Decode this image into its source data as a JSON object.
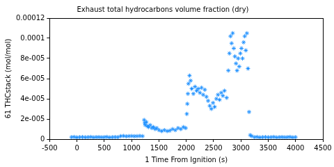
{
  "chart_data": {
    "type": "scatter",
    "title": "Exhaust total hydrocarbons volume fraction (dry)",
    "x_label": "1 Time From Ignition (s)",
    "y_label": "61 THCstack (mol/mol)",
    "color": "#1e90ff",
    "marker": "star",
    "grid": false,
    "x": [
      -100,
      -50,
      0,
      50,
      100,
      150,
      200,
      250,
      300,
      350,
      400,
      450,
      500,
      550,
      600,
      650,
      700,
      750,
      800,
      850,
      900,
      950,
      1000,
      1050,
      1100,
      1150,
      1200,
      1230,
      1240,
      1250,
      1270,
      1290,
      1310,
      1340,
      1370,
      1400,
      1430,
      1460,
      1500,
      1550,
      1600,
      1650,
      1700,
      1750,
      1800,
      1850,
      1900,
      1950,
      1990,
      2010,
      2020,
      2030,
      2040,
      2060,
      2080,
      2100,
      2130,
      2160,
      2190,
      2220,
      2250,
      2280,
      2310,
      2340,
      2370,
      2400,
      2430,
      2460,
      2490,
      2520,
      2550,
      2580,
      2610,
      2640,
      2670,
      2700,
      2740,
      2770,
      2790,
      2810,
      2830,
      2850,
      2870,
      2890,
      2910,
      2930,
      2950,
      2970,
      2990,
      3010,
      3030,
      3050,
      3070,
      3090,
      3110,
      3130,
      3150,
      3170,
      3200,
      3250,
      3300,
      3350,
      3400,
      3450,
      3500,
      3550,
      3600,
      3650,
      3700,
      3750,
      3800,
      3850,
      3900,
      3950,
      4000
    ],
    "values": [
      2e-06,
      2.2e-06,
      1.8e-06,
      2e-06,
      2.1e-06,
      1.9e-06,
      2e-06,
      2.2e-06,
      1.8e-06,
      2e-06,
      2.1e-06,
      1.9e-06,
      2e-06,
      2.2e-06,
      1.8e-06,
      2e-06,
      2.1e-06,
      2e-06,
      3e-06,
      3.2e-06,
      2.8e-06,
      3e-06,
      3.1e-06,
      2.9e-06,
      3e-06,
      3.2e-06,
      3e-06,
      1.9e-05,
      1.6e-05,
      1.4e-05,
      1.7e-05,
      1.3e-05,
      1.2e-05,
      1.4e-05,
      1.1e-05,
      1.2e-05,
      1e-05,
      1.1e-05,
      9e-06,
      8e-06,
      9e-06,
      8e-06,
      8.5e-06,
      1e-05,
      9e-06,
      1.1e-05,
      1e-05,
      1.2e-05,
      1.1e-05,
      2.5e-05,
      3.5e-05,
      4.5e-05,
      5.5e-05,
      6.3e-05,
      5.8e-05,
      5e-05,
      4.5e-05,
      5.2e-05,
      4.8e-05,
      5e-05,
      4.6e-05,
      5.1e-05,
      4.4e-05,
      4.9e-05,
      4.2e-05,
      3.8e-05,
      3.3e-05,
      3e-05,
      3.6e-05,
      3.2e-05,
      4e-05,
      4.4e-05,
      3.9e-05,
      4.6e-05,
      4.3e-05,
      4.8e-05,
      4.1e-05,
      6.8e-05,
      8.5e-05,
      0.000102,
      9.5e-05,
      0.000105,
      9e-05,
      8.2e-05,
      7.5e-05,
      6.8e-05,
      8e-05,
      7.2e-05,
      8.5e-05,
      9e-05,
      8e-05,
      9.6e-05,
      0.000102,
      8.8e-05,
      0.000105,
      7e-05,
      2.7e-05,
      4e-06,
      3e-06,
      2e-06,
      2.2e-06,
      1.8e-06,
      2e-06,
      2.1e-06,
      1.9e-06,
      2e-06,
      2.2e-06,
      1.8e-06,
      2e-06,
      2.1e-06,
      1.9e-06,
      2e-06,
      2.2e-06,
      1.8e-06,
      2e-06
    ],
    "xlim": [
      -500,
      4500
    ],
    "xticks": [
      -500,
      0,
      500,
      1000,
      1500,
      2000,
      2500,
      3000,
      3500,
      4000,
      4500
    ],
    "ylim": [
      0,
      0.00012
    ],
    "yticks": [
      0,
      {
        "value": 2e-05,
        "label": "2e-005"
      },
      {
        "value": 4e-05,
        "label": "4e-005"
      },
      {
        "value": 6e-05,
        "label": "6e-005"
      },
      {
        "value": 8e-05,
        "label": "8e-005"
      },
      0.0001,
      0.00012
    ]
  }
}
